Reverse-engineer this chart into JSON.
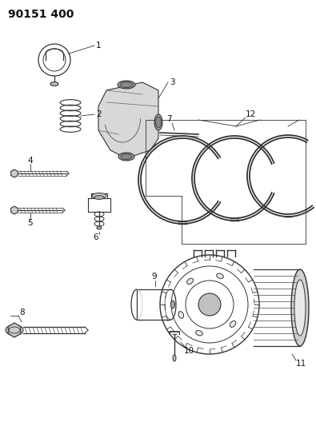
{
  "title": "90151 400",
  "background_color": "#ffffff",
  "line_color": "#333333",
  "label_color": "#111111",
  "title_fontsize": 10,
  "label_fontsize": 7.5,
  "fig_width": 3.95,
  "fig_height": 5.33,
  "dpi": 100
}
